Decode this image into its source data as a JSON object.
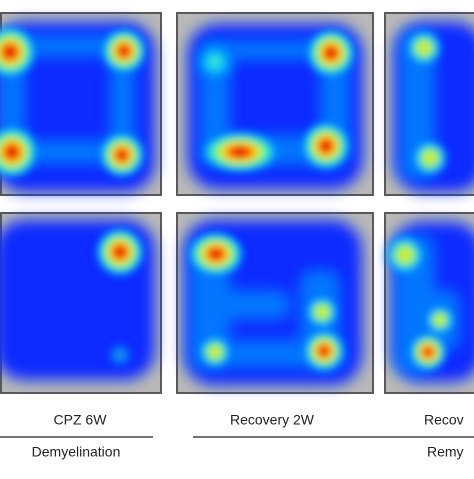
{
  "panels": [
    {
      "label": "CPZ 6W"
    },
    {
      "label": "Recovery 2W"
    },
    {
      "label": "Recov"
    }
  ],
  "groups": [
    {
      "label": "Demyelination"
    },
    {
      "label": "Remy"
    }
  ]
}
